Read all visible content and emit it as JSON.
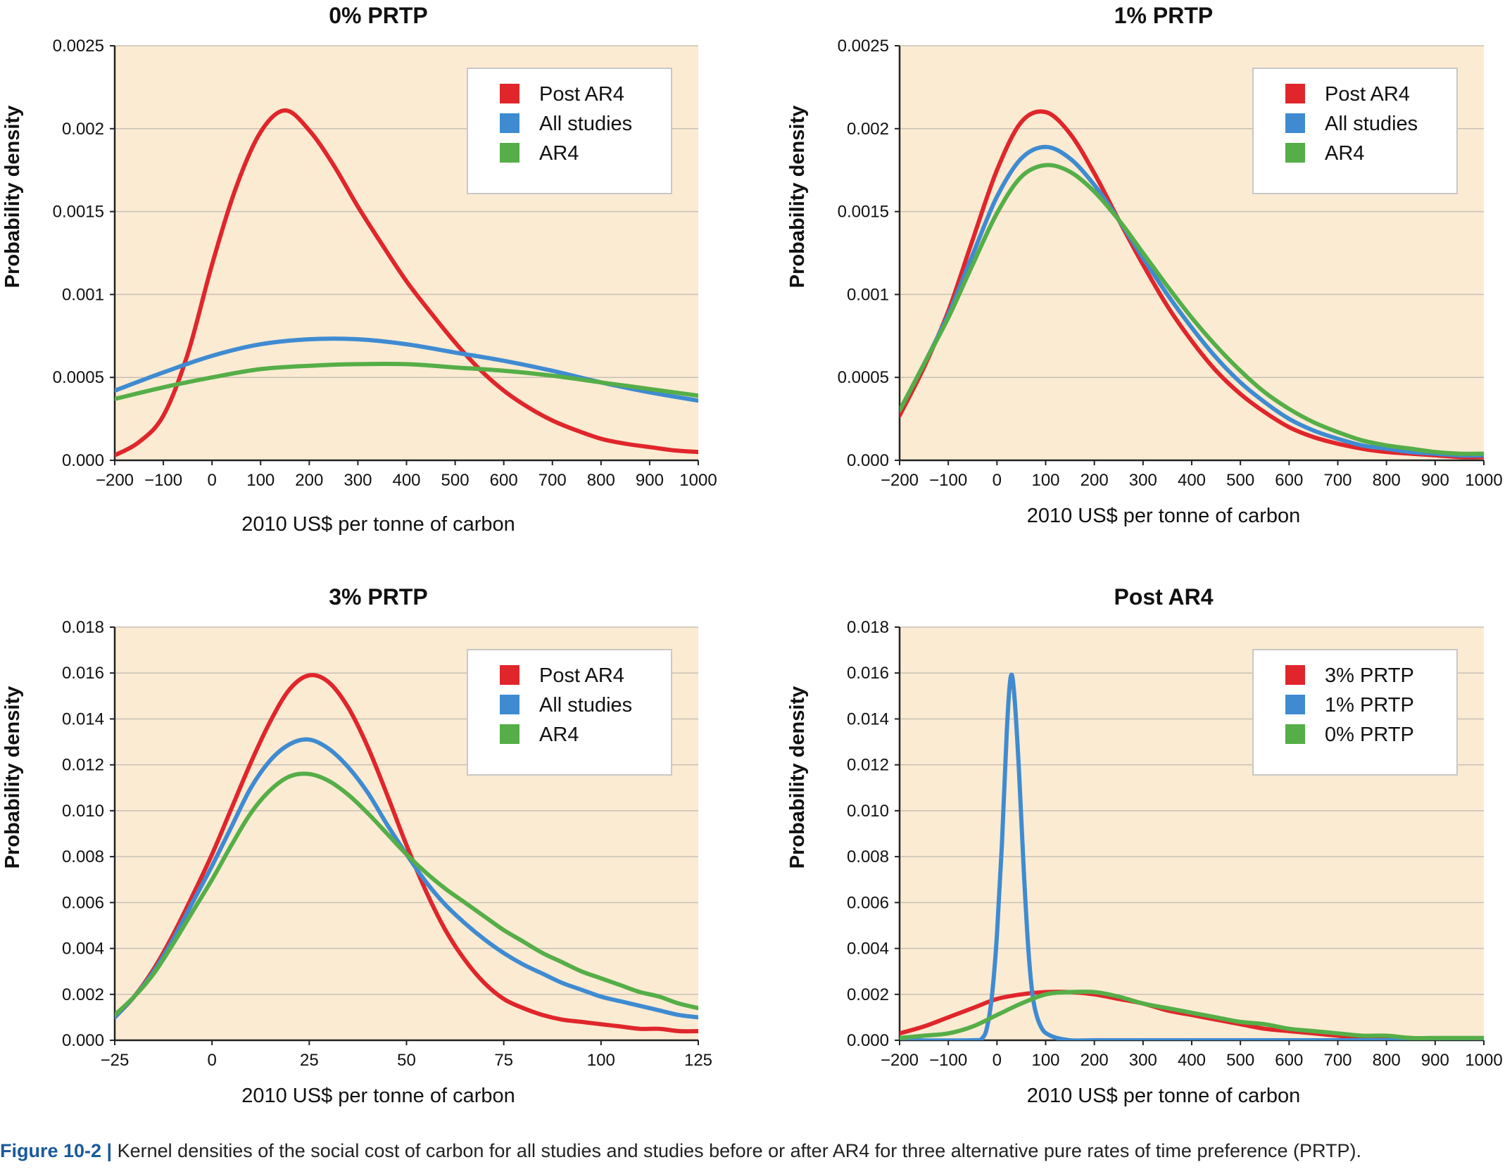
{
  "chart_data": [
    {
      "type": "line",
      "title": "0% PRTP",
      "xlabel": "2010 US$ per tonne of carbon",
      "ylabel": "Probability density",
      "xlim": [
        -200,
        1000
      ],
      "ylim": [
        0,
        0.0025
      ],
      "xticks": [
        -200,
        -100,
        0,
        100,
        200,
        300,
        400,
        500,
        600,
        700,
        800,
        900,
        1000
      ],
      "xtick_labels": [
        "−200",
        "−100",
        "0",
        "100",
        "200",
        "300",
        "400",
        "500",
        "600",
        "700",
        "800",
        "900",
        "1000"
      ],
      "yticks": [
        0,
        0.0005,
        0.001,
        0.0015,
        0.002,
        0.0025
      ],
      "ytick_labels": [
        "0.000",
        "0.0005",
        "0.001",
        "0.0015",
        "0.002",
        "0.0025"
      ],
      "grid": "horizontal",
      "legend": "top-right",
      "series": [
        {
          "name": "Post AR4",
          "color": "#e0262b",
          "x": [
            -200,
            -150,
            -100,
            -50,
            0,
            50,
            100,
            150,
            200,
            250,
            300,
            350,
            400,
            450,
            500,
            550,
            600,
            650,
            700,
            750,
            800,
            850,
            900,
            950,
            1000
          ],
          "y": [
            3e-05,
            0.00011,
            0.00027,
            0.00064,
            0.00118,
            0.00165,
            0.00198,
            0.00211,
            0.00199,
            0.00178,
            0.00153,
            0.0013,
            0.00108,
            0.00089,
            0.00071,
            0.00055,
            0.00042,
            0.00032,
            0.00024,
            0.00018,
            0.00013,
            0.0001,
            8e-05,
            6e-05,
            5e-05
          ]
        },
        {
          "name": "All studies",
          "color": "#3f8bd1",
          "x": [
            -200,
            -100,
            0,
            100,
            200,
            300,
            400,
            500,
            600,
            700,
            800,
            900,
            1000
          ],
          "y": [
            0.00042,
            0.00053,
            0.00063,
            0.0007,
            0.00073,
            0.00073,
            0.0007,
            0.00065,
            0.0006,
            0.00054,
            0.00047,
            0.00041,
            0.00036
          ]
        },
        {
          "name": "AR4",
          "color": "#55ae47",
          "x": [
            -200,
            -100,
            0,
            100,
            200,
            300,
            400,
            500,
            600,
            700,
            800,
            900,
            1000
          ],
          "y": [
            0.00037,
            0.00044,
            0.0005,
            0.00055,
            0.00057,
            0.00058,
            0.00058,
            0.00056,
            0.00054,
            0.00051,
            0.00047,
            0.00043,
            0.00039
          ]
        }
      ]
    },
    {
      "type": "line",
      "title": "1% PRTP",
      "xlabel": "2010 US$ per tonne of carbon",
      "ylabel": "Probability density",
      "xlim": [
        -200,
        1000
      ],
      "ylim": [
        0,
        0.0025
      ],
      "xticks": [
        -200,
        -100,
        0,
        100,
        200,
        300,
        400,
        500,
        600,
        700,
        800,
        900,
        1000
      ],
      "xtick_labels": [
        "−200",
        "−100",
        "0",
        "100",
        "200",
        "300",
        "400",
        "500",
        "600",
        "700",
        "800",
        "900",
        "1000"
      ],
      "yticks": [
        0,
        0.0005,
        0.001,
        0.0015,
        0.002,
        0.0025
      ],
      "ytick_labels": [
        "0.000",
        "0.0005",
        "0.001",
        "0.0015",
        "0.002",
        "0.0025"
      ],
      "grid": "horizontal",
      "legend": "top-right",
      "series": [
        {
          "name": "Post AR4",
          "color": "#e0262b",
          "x": [
            -200,
            -150,
            -100,
            -50,
            0,
            50,
            100,
            150,
            200,
            250,
            300,
            350,
            400,
            450,
            500,
            550,
            600,
            650,
            700,
            750,
            800,
            850,
            900,
            950,
            1000
          ],
          "y": [
            0.00027,
            0.00056,
            0.0009,
            0.00133,
            0.00175,
            0.00204,
            0.0021,
            0.00197,
            0.00173,
            0.00145,
            0.00118,
            0.00093,
            0.00072,
            0.00054,
            0.0004,
            0.00029,
            0.0002,
            0.00014,
            0.0001,
            7e-05,
            5e-05,
            4e-05,
            3e-05,
            2e-05,
            2e-05
          ]
        },
        {
          "name": "All studies",
          "color": "#3f8bd1",
          "x": [
            -200,
            -150,
            -100,
            -50,
            0,
            50,
            100,
            150,
            200,
            250,
            300,
            350,
            400,
            450,
            500,
            550,
            600,
            650,
            700,
            750,
            800,
            850,
            900,
            950,
            1000
          ],
          "y": [
            0.0003,
            0.00058,
            0.00088,
            0.00124,
            0.00159,
            0.00182,
            0.00189,
            0.00182,
            0.00166,
            0.00145,
            0.00122,
            0.001,
            0.0008,
            0.00062,
            0.00047,
            0.00035,
            0.00025,
            0.00018,
            0.00013,
            9e-05,
            7e-05,
            5e-05,
            4e-05,
            3e-05,
            3e-05
          ]
        },
        {
          "name": "AR4",
          "color": "#55ae47",
          "x": [
            -200,
            -150,
            -100,
            -50,
            0,
            50,
            100,
            150,
            200,
            250,
            300,
            350,
            400,
            450,
            500,
            550,
            600,
            650,
            700,
            750,
            800,
            850,
            900,
            950,
            1000
          ],
          "y": [
            0.0003,
            0.00058,
            0.00086,
            0.00118,
            0.00149,
            0.00171,
            0.00178,
            0.00174,
            0.00162,
            0.00145,
            0.00125,
            0.00105,
            0.00086,
            0.00069,
            0.00054,
            0.00041,
            0.00031,
            0.00023,
            0.00017,
            0.00012,
            9e-05,
            7e-05,
            5e-05,
            4e-05,
            4e-05
          ]
        }
      ]
    },
    {
      "type": "line",
      "title": "3% PRTP",
      "xlabel": "2010 US$ per tonne of carbon",
      "ylabel": "Probability density",
      "xlim": [
        -25,
        125
      ],
      "ylim": [
        0,
        0.018
      ],
      "xticks": [
        -25,
        0,
        25,
        50,
        75,
        100,
        125
      ],
      "xtick_labels": [
        "−25",
        "0",
        "25",
        "50",
        "75",
        "100",
        "125"
      ],
      "yticks": [
        0,
        0.002,
        0.004,
        0.006,
        0.008,
        0.01,
        0.012,
        0.014,
        0.016,
        0.018
      ],
      "ytick_labels": [
        "0.000",
        "0.002",
        "0.004",
        "0.006",
        "0.008",
        "0.010",
        "0.012",
        "0.014",
        "0.016",
        "0.018"
      ],
      "grid": "horizontal",
      "legend": "top-right",
      "series": [
        {
          "name": "Post AR4",
          "color": "#e0262b",
          "x": [
            -25,
            -20,
            -15,
            -10,
            -5,
            0,
            5,
            10,
            15,
            20,
            25,
            30,
            35,
            40,
            45,
            50,
            55,
            60,
            65,
            70,
            75,
            80,
            85,
            90,
            95,
            100,
            105,
            110,
            115,
            120,
            125
          ],
          "y": [
            0.001,
            0.0019,
            0.0031,
            0.0046,
            0.0063,
            0.0081,
            0.0101,
            0.0121,
            0.0139,
            0.0153,
            0.0159,
            0.0156,
            0.0145,
            0.0128,
            0.0107,
            0.0085,
            0.0065,
            0.0048,
            0.0035,
            0.0025,
            0.0018,
            0.0014,
            0.0011,
            0.0009,
            0.0008,
            0.0007,
            0.0006,
            0.0005,
            0.0005,
            0.0004,
            0.0004
          ]
        },
        {
          "name": "All studies",
          "color": "#3f8bd1",
          "x": [
            -25,
            -20,
            -15,
            -10,
            -5,
            0,
            5,
            10,
            15,
            20,
            25,
            30,
            35,
            40,
            45,
            50,
            55,
            60,
            65,
            70,
            75,
            80,
            85,
            90,
            95,
            100,
            105,
            110,
            115,
            120,
            125
          ],
          "y": [
            0.001,
            0.0019,
            0.003,
            0.0044,
            0.006,
            0.0076,
            0.0093,
            0.011,
            0.0122,
            0.0129,
            0.0131,
            0.0127,
            0.0119,
            0.0108,
            0.0094,
            0.0081,
            0.0069,
            0.0059,
            0.0051,
            0.0044,
            0.0038,
            0.0033,
            0.0029,
            0.0025,
            0.0022,
            0.0019,
            0.0017,
            0.0015,
            0.0013,
            0.0011,
            0.001
          ]
        },
        {
          "name": "AR4",
          "color": "#55ae47",
          "x": [
            -25,
            -20,
            -15,
            -10,
            -5,
            0,
            5,
            10,
            15,
            20,
            25,
            30,
            35,
            40,
            45,
            50,
            55,
            60,
            65,
            70,
            75,
            80,
            85,
            90,
            95,
            100,
            105,
            110,
            115,
            120,
            125
          ],
          "y": [
            0.0011,
            0.0019,
            0.0029,
            0.0042,
            0.0056,
            0.007,
            0.0085,
            0.0099,
            0.0109,
            0.0115,
            0.0116,
            0.0113,
            0.0107,
            0.0099,
            0.009,
            0.0081,
            0.0073,
            0.0066,
            0.006,
            0.0054,
            0.0048,
            0.0043,
            0.0038,
            0.0034,
            0.003,
            0.0027,
            0.0024,
            0.0021,
            0.0019,
            0.0016,
            0.0014
          ]
        }
      ]
    },
    {
      "type": "line",
      "title": "Post AR4",
      "xlabel": "2010 US$ per tonne of carbon",
      "ylabel": "Probability density",
      "xlim": [
        -200,
        1000
      ],
      "ylim": [
        0,
        0.018
      ],
      "xticks": [
        -200,
        -100,
        0,
        100,
        200,
        300,
        400,
        500,
        600,
        700,
        800,
        900,
        1000
      ],
      "xtick_labels": [
        "−200",
        "−100",
        "0",
        "100",
        "200",
        "300",
        "400",
        "500",
        "600",
        "700",
        "800",
        "900",
        "1000"
      ],
      "yticks": [
        0,
        0.002,
        0.004,
        0.006,
        0.008,
        0.01,
        0.012,
        0.014,
        0.016,
        0.018
      ],
      "ytick_labels": [
        "0.000",
        "0.002",
        "0.004",
        "0.006",
        "0.008",
        "0.010",
        "0.012",
        "0.014",
        "0.016",
        "0.018"
      ],
      "grid": "horizontal",
      "legend": "top-right",
      "series": [
        {
          "name": "3% PRTP",
          "color": "#e0262b",
          "x": [
            -200,
            -150,
            -100,
            -50,
            0,
            50,
            100,
            150,
            200,
            250,
            300,
            350,
            400,
            450,
            500,
            550,
            600,
            650,
            700,
            750,
            800,
            850,
            900,
            950,
            1000
          ],
          "y": [
            0.0003,
            0.0006,
            0.001,
            0.0014,
            0.0018,
            0.002,
            0.0021,
            0.0021,
            0.002,
            0.0018,
            0.0016,
            0.0013,
            0.0011,
            0.0009,
            0.0007,
            0.0005,
            0.0004,
            0.0003,
            0.0002,
            0.0001,
            0.0001,
            0.0001,
            0,
            0,
            0
          ]
        },
        {
          "name": "1% PRTP",
          "color": "#3f8bd1",
          "x": [
            -200,
            -50,
            -30,
            -20,
            -10,
            0,
            10,
            20,
            28,
            35,
            45,
            55,
            65,
            75,
            90,
            110,
            150,
            200,
            300,
            1000
          ],
          "y": [
            0,
            0,
            0.0001,
            0.0006,
            0.002,
            0.0046,
            0.0085,
            0.0134,
            0.0158,
            0.0152,
            0.0118,
            0.0074,
            0.0038,
            0.0017,
            0.0006,
            0.0002,
            0,
            0,
            0,
            0
          ]
        },
        {
          "name": "0% PRTP",
          "color": "#55ae47",
          "x": [
            -200,
            -150,
            -100,
            -50,
            0,
            50,
            100,
            150,
            200,
            250,
            300,
            350,
            400,
            450,
            500,
            550,
            600,
            650,
            700,
            750,
            800,
            850,
            900,
            950,
            1000
          ],
          "y": [
            0.0001,
            0.0002,
            0.0003,
            0.0006,
            0.0011,
            0.0016,
            0.002,
            0.0021,
            0.0021,
            0.0019,
            0.0016,
            0.0014,
            0.0012,
            0.001,
            0.0008,
            0.0007,
            0.0005,
            0.0004,
            0.0003,
            0.0002,
            0.0002,
            0.0001,
            0.0001,
            0.0001,
            0.0001
          ]
        }
      ]
    }
  ],
  "style": {
    "plot_background": "#fbebd3",
    "gridline_color": "#c9c0b4",
    "axis_color": "#222222",
    "caption_label_color": "#1a5a9a"
  },
  "caption": {
    "label": "Figure 10-2 |",
    "text": "Kernel densities of the social cost of carbon for all studies and studies before or after AR4 for three alternative pure rates of time preference (PRTP)."
  }
}
